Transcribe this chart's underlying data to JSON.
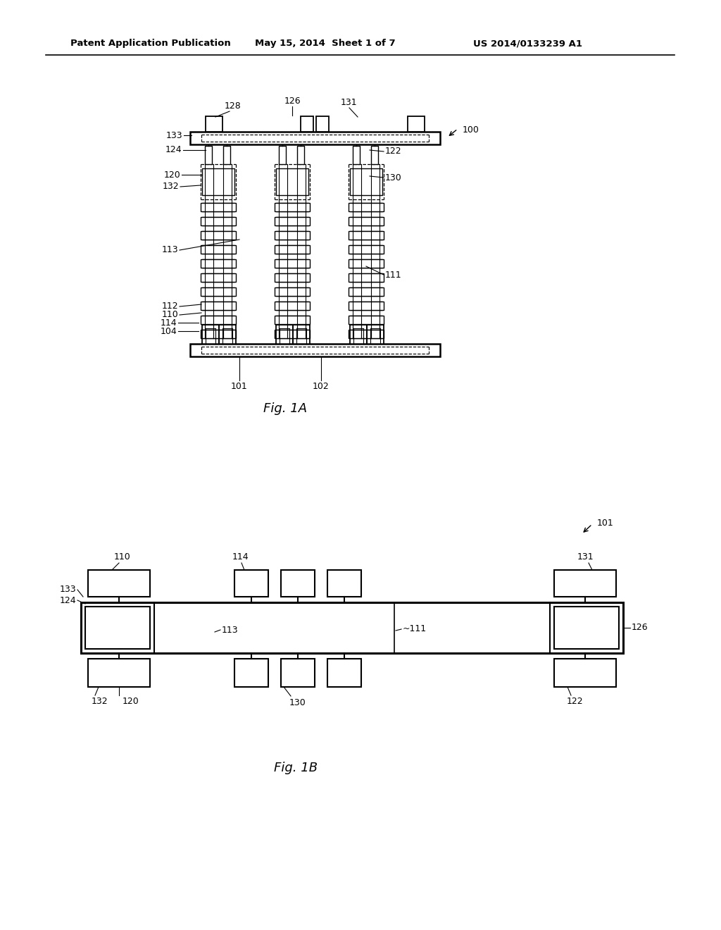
{
  "bg": "#ffffff",
  "black": "#000000",
  "header1": "Patent Application Publication",
  "header2": "May 15, 2014  Sheet 1 of 7",
  "header3": "US 2014/0133239 A1",
  "fig1a": "Fig. 1A",
  "fig1b": "Fig. 1B"
}
